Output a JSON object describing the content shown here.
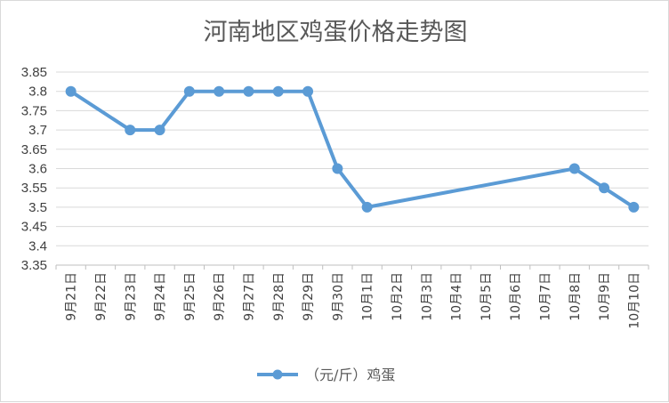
{
  "chart_data": {
    "type": "line",
    "title": "河南地区鸡蛋价格走势图",
    "categories": [
      "9月21日",
      "9月22日",
      "9月23日",
      "9月24日",
      "9月25日",
      "9月26日",
      "9月27日",
      "9月28日",
      "9月29日",
      "9月30日",
      "10月1日",
      "10月2日",
      "10月3日",
      "10月4日",
      "10月5日",
      "10月6日",
      "10月7日",
      "10月8日",
      "10月9日",
      "10月10日"
    ],
    "series": [
      {
        "name": "（元/斤）鸡蛋",
        "color": "#5b9bd5",
        "values": [
          3.8,
          null,
          3.7,
          3.7,
          3.8,
          3.8,
          3.8,
          3.8,
          3.8,
          3.6,
          3.5,
          null,
          null,
          null,
          null,
          null,
          null,
          3.6,
          3.55,
          3.5
        ]
      }
    ],
    "ylim": [
      3.35,
      3.85
    ],
    "yticks": [
      "3.35",
      "3.4",
      "3.45",
      "3.5",
      "3.55",
      "3.6",
      "3.65",
      "3.7",
      "3.75",
      "3.8",
      "3.85"
    ],
    "grid": true,
    "legend": "bottom",
    "xlabel": "",
    "ylabel": ""
  }
}
